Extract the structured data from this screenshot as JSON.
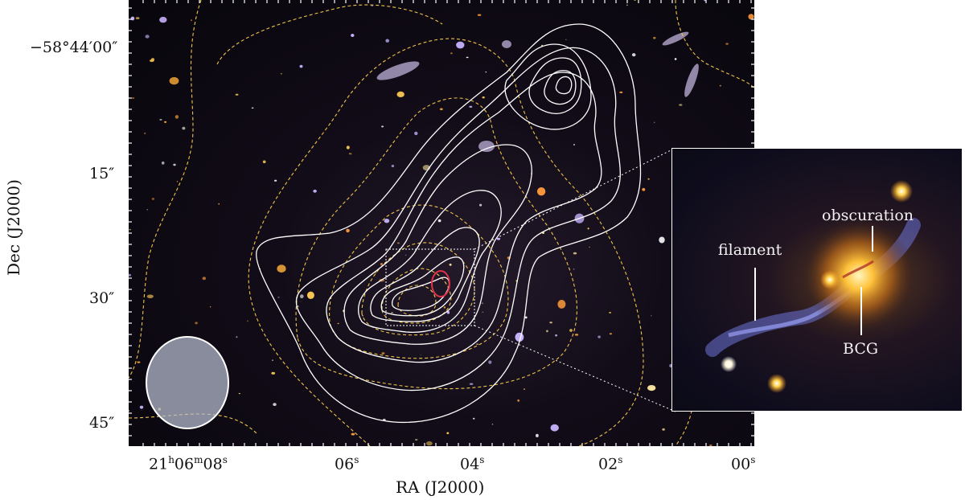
{
  "axes": {
    "x_title": "RA (J2000)",
    "y_title": "Dec (J2000)",
    "x_ticks": [
      {
        "h": "21",
        "m": "06",
        "s": "08"
      },
      {
        "s": "06"
      },
      {
        "s": "04"
      },
      {
        "s": "02"
      },
      {
        "s": "00"
      }
    ],
    "y_ticks": [
      "−58°44′00″",
      "15″",
      "30″",
      "45″"
    ]
  },
  "inset": {
    "labels": {
      "filament": "filament",
      "obscuration": "obscuration",
      "bcg": "BCG"
    }
  },
  "colors": {
    "radio_contours": "#ffffff",
    "xray_contours": "#f0c44a",
    "beam": "#b9bfd2",
    "highlight": "#e0304a"
  }
}
